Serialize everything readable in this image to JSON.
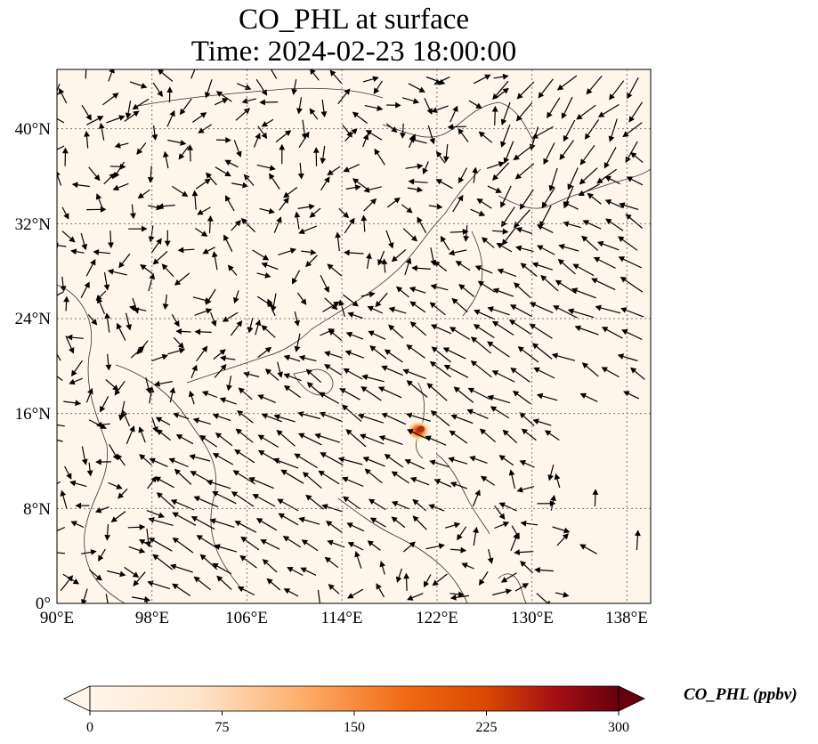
{
  "title": {
    "line1": "CO_PHL at surface",
    "line2": "Time: 2024-02-23 18:00:00"
  },
  "map": {
    "extent_lon": [
      90,
      140
    ],
    "extent_lat": [
      0,
      45
    ],
    "lon_ticks": [
      "90°E",
      "98°E",
      "106°E",
      "114°E",
      "122°E",
      "130°E",
      "138°E"
    ],
    "lat_ticks": [
      "0°",
      "8°N",
      "16°N",
      "24°N",
      "32°N",
      "40°N"
    ],
    "gridlines": true,
    "background_color": "#fff5eb",
    "feature": "wind-vector-arrows",
    "hotspot": {
      "lon": 120.8,
      "lat": 14.6,
      "note_color": "#b22b1a"
    }
  },
  "colorbar": {
    "label": "CO_PHL (ppbv)",
    "ticks": [
      "0",
      "75",
      "150",
      "225",
      "300"
    ],
    "min": 0,
    "max": 300,
    "colormap": "OrRd",
    "colors": [
      "#fff5eb",
      "#fdd49e",
      "#fdae6b",
      "#f16913",
      "#d94801",
      "#a50f15",
      "#67000d"
    ],
    "extend": "both"
  }
}
